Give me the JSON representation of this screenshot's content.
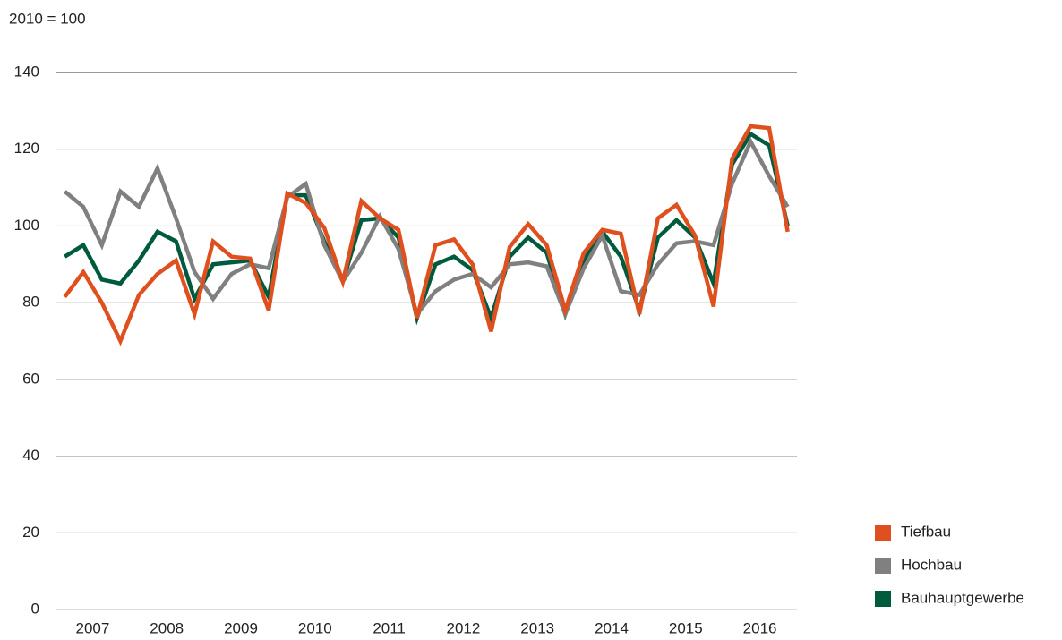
{
  "chart_data": {
    "type": "line",
    "subtitle": "2010 = 100",
    "categories": [
      "2007",
      null,
      null,
      null,
      "2008",
      null,
      null,
      null,
      "2009",
      null,
      null,
      null,
      "2010",
      null,
      null,
      null,
      "2011",
      null,
      null,
      null,
      "2012",
      null,
      null,
      null,
      "2013",
      null,
      null,
      null,
      "2014",
      null,
      null,
      null,
      "2015",
      null,
      null,
      null,
      "2016",
      null,
      null,
      null
    ],
    "series": [
      {
        "name": "Tiefbau",
        "color": "#e0501e",
        "values": [
          81.5,
          88,
          80,
          70,
          82,
          87.5,
          91,
          77,
          96,
          92,
          91.5,
          78,
          108.5,
          106,
          99.5,
          85.5,
          106.5,
          102,
          99,
          76,
          95,
          96.5,
          90,
          72.5,
          94.5,
          100.5,
          95,
          78,
          93,
          99,
          98,
          77,
          102,
          105.5,
          97.5,
          79,
          117.5,
          126,
          125.5,
          98.5
        ]
      },
      {
        "name": "Hochbau",
        "color": "#808080",
        "values": [
          109,
          105,
          95,
          109,
          105,
          115,
          102,
          88,
          81,
          87.5,
          90,
          89,
          107.5,
          111,
          95,
          85.5,
          93,
          102.5,
          94,
          77,
          83,
          86,
          87.5,
          84,
          90,
          90.5,
          89.5,
          77,
          89,
          97.5,
          83,
          82,
          90,
          95.5,
          96,
          95,
          111,
          122,
          113,
          105
        ]
      },
      {
        "name": "Bauhauptgewerbe",
        "color": "#005a3c",
        "values": [
          92,
          95,
          86,
          85,
          91,
          98.5,
          96,
          81,
          90,
          90.5,
          91,
          81.5,
          108,
          108,
          96,
          85.5,
          101.5,
          102,
          97,
          76,
          90,
          92,
          88.5,
          76,
          92,
          97,
          93,
          77,
          91,
          98.5,
          92,
          78,
          97,
          101.5,
          97,
          85,
          116,
          124,
          121,
          100
        ]
      }
    ],
    "ylim": [
      0,
      140
    ],
    "yticks": [
      0,
      20,
      40,
      60,
      80,
      100,
      120,
      140
    ],
    "grid": true,
    "legend": "right"
  }
}
